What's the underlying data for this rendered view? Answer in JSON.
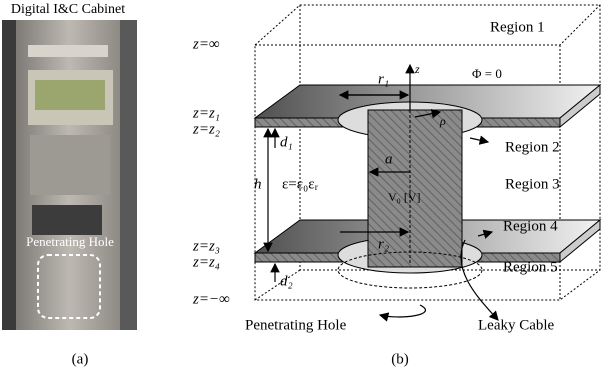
{
  "panel_a": {
    "title": "Digital I&C Cabinet",
    "hole_label": "Penetrating Hole",
    "caption": "(a)"
  },
  "panel_b": {
    "caption": "(b)",
    "regions": [
      "Region 1",
      "Region 2",
      "Region 3",
      "Region 4",
      "Region 5"
    ],
    "z_labels": [
      "z=∞",
      "z=z₁",
      "z=z₂",
      "z=z₃",
      "z=z₄",
      "z=−∞"
    ],
    "symbols": {
      "r1": "r₁",
      "r2": "r₂",
      "d1": "d₁",
      "d2": "d₂",
      "h": "h",
      "a": "a",
      "epsilon": "ε=ε₀εᵣ",
      "voltage": "V₀ [V]",
      "phi": "Φ = 0",
      "z": "z",
      "rho": "ρ"
    },
    "callouts": {
      "hole": "Penetrating Hole",
      "cable": "Leaky Cable"
    }
  }
}
